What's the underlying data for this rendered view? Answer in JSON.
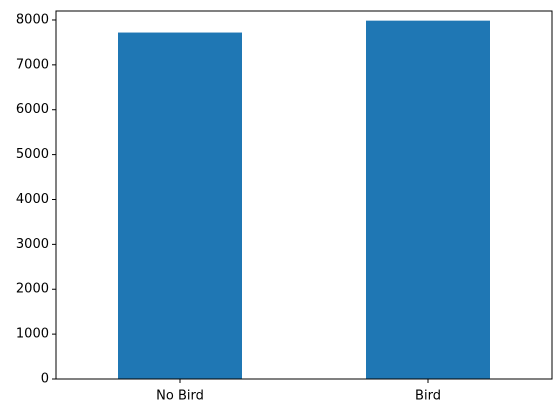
{
  "chart_data": {
    "type": "bar",
    "categories": [
      "No Bird",
      "Bird"
    ],
    "values": [
      7720,
      7985
    ],
    "title": "",
    "xlabel": "",
    "ylabel": "",
    "ylim": [
      0,
      8200
    ],
    "yticks": [
      "0",
      "1000",
      "2000",
      "3000",
      "4000",
      "5000",
      "6000",
      "7000",
      "8000"
    ],
    "grid": false,
    "legend": "none",
    "bar_color": "#1f77b4"
  }
}
